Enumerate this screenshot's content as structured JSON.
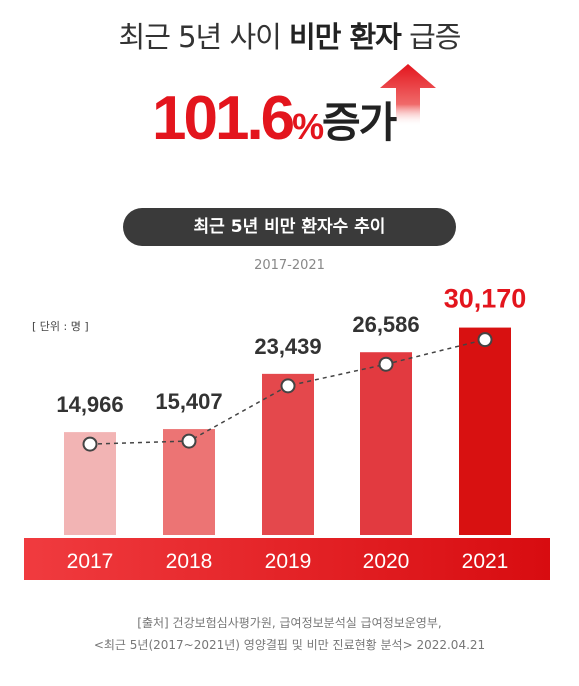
{
  "header": {
    "title_part1": "최근 5년 사이 ",
    "title_bold": "비만 환자",
    "title_part2": " 급증",
    "increase_value": "101.6",
    "increase_unit": "%",
    "increase_word": "증가"
  },
  "subtitle": {
    "pill_text": "최근 5년 비만 환자수 추이",
    "period": "2017-2021"
  },
  "chart_data": {
    "type": "bar",
    "unit_label": "[ 단위 : 명 ]",
    "categories": [
      "2017",
      "2018",
      "2019",
      "2020",
      "2021"
    ],
    "values": [
      14966,
      15407,
      23439,
      26586,
      30170
    ],
    "value_labels": [
      "14,966",
      "15,407",
      "23,439",
      "26,586",
      "30,170"
    ],
    "ylim": [
      0,
      40000
    ],
    "highlight_index": 4,
    "bar_colors": [
      "#f2b4b4",
      "#ec7474",
      "#e4484c",
      "#e23a40",
      "#d81111"
    ],
    "trend_line": "dashed",
    "grid": false
  },
  "colors": {
    "accent": "#e3151d",
    "pill_bg": "#3a3a3a",
    "axis_band_start": "#f03b3f",
    "axis_band_end": "#d80c10"
  },
  "source": {
    "line1": "[출처] 건강보험심사평가원, 급여정보분석실 급여정보운영부,",
    "line2": "<최근 5년(2017~2021년) 영양결핍 및 비만 진료현황 분석> 2022.04.21"
  }
}
